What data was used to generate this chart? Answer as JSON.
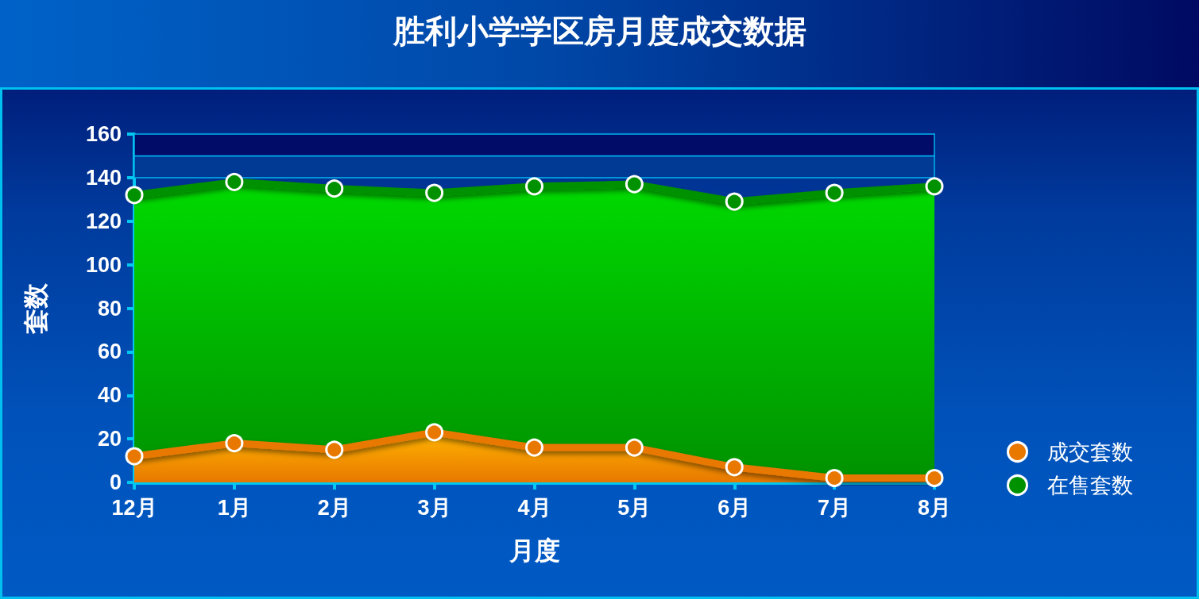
{
  "chart_data": {
    "type": "area",
    "title": "胜利小学学区房月度成交数据",
    "xlabel": "月度",
    "ylabel": "套数",
    "categories": [
      "12月",
      "1月",
      "2月",
      "3月",
      "4月",
      "5月",
      "6月",
      "7月",
      "8月"
    ],
    "series": [
      {
        "name": "成交套数",
        "color": "#e87800",
        "values": [
          12,
          18,
          15,
          23,
          16,
          16,
          7,
          2,
          2
        ]
      },
      {
        "name": "在售套数",
        "color": "#009100",
        "values": [
          132,
          138,
          135,
          133,
          136,
          137,
          129,
          133,
          136
        ]
      }
    ],
    "ylim": [
      0,
      160
    ],
    "yticks": [
      0,
      20,
      40,
      60,
      80,
      100,
      120,
      140,
      160
    ],
    "bands": [
      {
        "axis": "y",
        "from": 140,
        "to": 150,
        "color": "#003a94"
      },
      {
        "axis": "y",
        "from": 150,
        "to": 160,
        "color": "#000c68"
      }
    ],
    "legend": "bottom right",
    "marker": "circle"
  }
}
